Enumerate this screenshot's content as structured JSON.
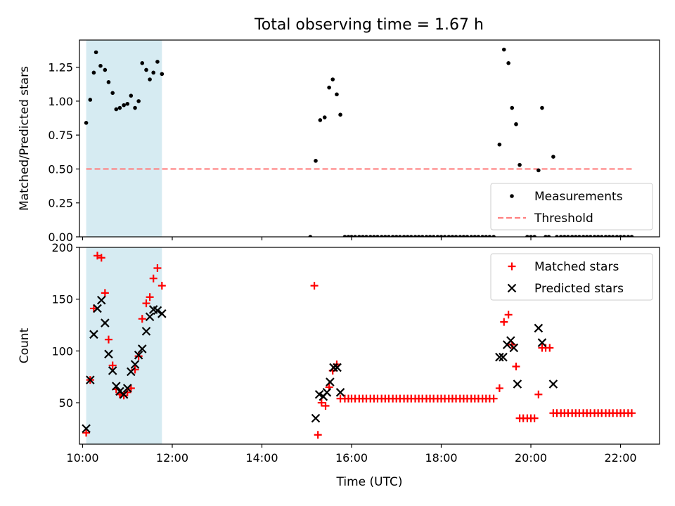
{
  "title": "Total observing time = 1.67 h",
  "chart_data": [
    {
      "type": "scatter",
      "ylabel": "Matched/Predicted stars",
      "xlabel": "",
      "xlim": [
        9.93,
        22.87
      ],
      "ylim": [
        0,
        1.45
      ],
      "yticks": [
        0,
        0.25,
        0.5,
        0.75,
        1.0,
        1.25
      ],
      "ytick_labels": [
        "0.00",
        "0.25",
        "0.50",
        "0.75",
        "1.00",
        "1.25"
      ],
      "shaded_span": [
        10.08,
        11.77
      ],
      "shaded_color": "#add8e6",
      "threshold": 0.5,
      "threshold_color": "#ff7f7f",
      "legend": [
        "Measurements",
        "Threshold"
      ],
      "legend_loc": "lower right",
      "series": [
        {
          "name": "Measurements",
          "color": "#000000",
          "marker": "dot",
          "points": [
            [
              10.08,
              0.84
            ],
            [
              10.17,
              1.01
            ],
            [
              10.25,
              1.21
            ],
            [
              10.3,
              1.36
            ],
            [
              10.4,
              1.26
            ],
            [
              10.5,
              1.23
            ],
            [
              10.58,
              1.14
            ],
            [
              10.67,
              1.06
            ],
            [
              10.75,
              0.94
            ],
            [
              10.83,
              0.95
            ],
            [
              10.92,
              0.97
            ],
            [
              11.0,
              0.98
            ],
            [
              11.08,
              1.04
            ],
            [
              11.17,
              0.95
            ],
            [
              11.25,
              1.0
            ],
            [
              11.33,
              1.28
            ],
            [
              11.42,
              1.23
            ],
            [
              11.5,
              1.16
            ],
            [
              11.58,
              1.21
            ],
            [
              11.67,
              1.29
            ],
            [
              11.77,
              1.2
            ],
            [
              15.08,
              0.0
            ],
            [
              15.2,
              0.56
            ],
            [
              15.3,
              0.86
            ],
            [
              15.4,
              0.88
            ],
            [
              15.5,
              1.1
            ],
            [
              15.58,
              1.16
            ],
            [
              15.67,
              1.05
            ],
            [
              15.75,
              0.9
            ],
            [
              15.85,
              0.0
            ],
            [
              15.93,
              0.0
            ],
            [
              16.0,
              0.0
            ],
            [
              16.08,
              0.0
            ],
            [
              16.17,
              0.0
            ],
            [
              16.25,
              0.0
            ],
            [
              16.33,
              0.0
            ],
            [
              16.42,
              0.0
            ],
            [
              16.5,
              0.0
            ],
            [
              16.58,
              0.0
            ],
            [
              16.67,
              0.0
            ],
            [
              16.75,
              0.0
            ],
            [
              16.83,
              0.0
            ],
            [
              16.92,
              0.0
            ],
            [
              17.0,
              0.0
            ],
            [
              17.08,
              0.0
            ],
            [
              17.17,
              0.0
            ],
            [
              17.25,
              0.0
            ],
            [
              17.33,
              0.0
            ],
            [
              17.42,
              0.0
            ],
            [
              17.5,
              0.0
            ],
            [
              17.58,
              0.0
            ],
            [
              17.67,
              0.0
            ],
            [
              17.75,
              0.0
            ],
            [
              17.83,
              0.0
            ],
            [
              17.92,
              0.0
            ],
            [
              18.0,
              0.0
            ],
            [
              18.08,
              0.0
            ],
            [
              18.17,
              0.0
            ],
            [
              18.25,
              0.0
            ],
            [
              18.33,
              0.0
            ],
            [
              18.42,
              0.0
            ],
            [
              18.5,
              0.0
            ],
            [
              18.58,
              0.0
            ],
            [
              18.67,
              0.0
            ],
            [
              18.75,
              0.0
            ],
            [
              18.83,
              0.0
            ],
            [
              18.92,
              0.0
            ],
            [
              19.0,
              0.0
            ],
            [
              19.08,
              0.0
            ],
            [
              19.17,
              0.0
            ],
            [
              19.3,
              0.68
            ],
            [
              19.4,
              1.38
            ],
            [
              19.5,
              1.28
            ],
            [
              19.58,
              0.95
            ],
            [
              19.67,
              0.83
            ],
            [
              19.75,
              0.53
            ],
            [
              19.92,
              0.0
            ],
            [
              20.0,
              0.0
            ],
            [
              20.08,
              0.0
            ],
            [
              20.17,
              0.49
            ],
            [
              20.25,
              0.95
            ],
            [
              20.4,
              0.0
            ],
            [
              20.5,
              0.59
            ],
            [
              20.33,
              0.0
            ],
            [
              20.58,
              0.0
            ],
            [
              20.67,
              0.0
            ],
            [
              20.75,
              0.0
            ],
            [
              20.83,
              0.0
            ],
            [
              20.92,
              0.0
            ],
            [
              21.0,
              0.0
            ],
            [
              21.08,
              0.0
            ],
            [
              21.17,
              0.0
            ],
            [
              21.25,
              0.0
            ],
            [
              21.33,
              0.0
            ],
            [
              21.42,
              0.0
            ],
            [
              21.5,
              0.0
            ],
            [
              21.58,
              0.0
            ],
            [
              21.67,
              0.0
            ],
            [
              21.75,
              0.0
            ],
            [
              21.83,
              0.0
            ],
            [
              21.92,
              0.0
            ],
            [
              22.0,
              0.0
            ],
            [
              22.08,
              0.0
            ],
            [
              22.17,
              0.0
            ],
            [
              22.25,
              0.0
            ]
          ]
        }
      ]
    },
    {
      "type": "scatter",
      "ylabel": "Count",
      "xlabel": "Time (UTC)",
      "xlim": [
        9.93,
        22.87
      ],
      "ylim": [
        10,
        200
      ],
      "yticks": [
        50,
        100,
        150,
        200
      ],
      "ytick_labels": [
        "50",
        "100",
        "150",
        "200"
      ],
      "xticks": [
        10,
        12,
        14,
        16,
        18,
        20,
        22
      ],
      "xtick_labels": [
        "10:00",
        "12:00",
        "14:00",
        "16:00",
        "18:00",
        "20:00",
        "22:00"
      ],
      "shaded_span": [
        10.08,
        11.77
      ],
      "shaded_color": "#add8e6",
      "legend": [
        "Matched stars",
        "Predicted stars"
      ],
      "legend_loc": "upper right",
      "series": [
        {
          "name": "Matched stars",
          "color": "#ff0000",
          "marker": "plus",
          "points": [
            [
              10.08,
              21
            ],
            [
              10.17,
              72
            ],
            [
              10.25,
              141
            ],
            [
              10.33,
              192
            ],
            [
              10.42,
              190
            ],
            [
              10.5,
              156
            ],
            [
              10.58,
              111
            ],
            [
              10.67,
              86
            ],
            [
              10.75,
              63
            ],
            [
              10.83,
              58
            ],
            [
              10.92,
              57
            ],
            [
              11.0,
              60
            ],
            [
              11.08,
              64
            ],
            [
              11.17,
              82
            ],
            [
              11.25,
              95
            ],
            [
              11.33,
              131
            ],
            [
              11.42,
              146
            ],
            [
              11.5,
              152
            ],
            [
              11.58,
              170
            ],
            [
              11.67,
              180
            ],
            [
              11.77,
              163
            ],
            [
              15.17,
              163
            ],
            [
              15.25,
              19
            ],
            [
              15.33,
              50
            ],
            [
              15.42,
              47
            ],
            [
              15.5,
              65
            ],
            [
              15.58,
              81
            ],
            [
              15.67,
              87
            ],
            [
              15.75,
              54
            ],
            [
              15.85,
              54
            ],
            [
              15.93,
              54
            ],
            [
              16.0,
              54
            ],
            [
              16.08,
              54
            ],
            [
              16.17,
              54
            ],
            [
              16.25,
              54
            ],
            [
              16.33,
              54
            ],
            [
              16.42,
              54
            ],
            [
              16.5,
              54
            ],
            [
              16.58,
              54
            ],
            [
              16.67,
              54
            ],
            [
              16.75,
              54
            ],
            [
              16.83,
              54
            ],
            [
              16.92,
              54
            ],
            [
              17.0,
              54
            ],
            [
              17.08,
              54
            ],
            [
              17.17,
              54
            ],
            [
              17.25,
              54
            ],
            [
              17.33,
              54
            ],
            [
              17.42,
              54
            ],
            [
              17.5,
              54
            ],
            [
              17.58,
              54
            ],
            [
              17.67,
              54
            ],
            [
              17.75,
              54
            ],
            [
              17.83,
              54
            ],
            [
              17.92,
              54
            ],
            [
              18.0,
              54
            ],
            [
              18.08,
              54
            ],
            [
              18.17,
              54
            ],
            [
              18.25,
              54
            ],
            [
              18.33,
              54
            ],
            [
              18.42,
              54
            ],
            [
              18.5,
              54
            ],
            [
              18.58,
              54
            ],
            [
              18.67,
              54
            ],
            [
              18.75,
              54
            ],
            [
              18.83,
              54
            ],
            [
              18.92,
              54
            ],
            [
              19.0,
              54
            ],
            [
              19.08,
              54
            ],
            [
              19.17,
              54
            ],
            [
              19.3,
              64
            ],
            [
              19.4,
              128
            ],
            [
              19.5,
              135
            ],
            [
              19.58,
              106
            ],
            [
              19.67,
              85
            ],
            [
              19.75,
              35
            ],
            [
              19.83,
              35
            ],
            [
              19.92,
              35
            ],
            [
              20.0,
              35
            ],
            [
              20.08,
              35
            ],
            [
              20.17,
              58
            ],
            [
              20.25,
              103
            ],
            [
              20.33,
              103
            ],
            [
              20.42,
              103
            ],
            [
              20.5,
              40
            ],
            [
              20.58,
              40
            ],
            [
              20.67,
              40
            ],
            [
              20.75,
              40
            ],
            [
              20.83,
              40
            ],
            [
              20.92,
              40
            ],
            [
              21.0,
              40
            ],
            [
              21.08,
              40
            ],
            [
              21.17,
              40
            ],
            [
              21.25,
              40
            ],
            [
              21.33,
              40
            ],
            [
              21.42,
              40
            ],
            [
              21.5,
              40
            ],
            [
              21.58,
              40
            ],
            [
              21.67,
              40
            ],
            [
              21.75,
              40
            ],
            [
              21.83,
              40
            ],
            [
              21.92,
              40
            ],
            [
              22.0,
              40
            ],
            [
              22.08,
              40
            ],
            [
              22.17,
              40
            ],
            [
              22.25,
              40
            ]
          ]
        },
        {
          "name": "Predicted stars",
          "color": "#000000",
          "marker": "x",
          "points": [
            [
              10.08,
              25
            ],
            [
              10.17,
              72
            ],
            [
              10.25,
              116
            ],
            [
              10.33,
              141
            ],
            [
              10.42,
              149
            ],
            [
              10.5,
              127
            ],
            [
              10.58,
              97
            ],
            [
              10.67,
              81
            ],
            [
              10.75,
              66
            ],
            [
              10.83,
              61
            ],
            [
              10.92,
              58
            ],
            [
              11.0,
              64
            ],
            [
              11.08,
              80
            ],
            [
              11.17,
              87
            ],
            [
              11.25,
              96
            ],
            [
              11.33,
              102
            ],
            [
              11.42,
              119
            ],
            [
              11.5,
              133
            ],
            [
              11.58,
              140
            ],
            [
              11.67,
              139
            ],
            [
              11.77,
              136
            ],
            [
              15.2,
              35
            ],
            [
              15.28,
              58
            ],
            [
              15.37,
              56
            ],
            [
              15.45,
              60
            ],
            [
              15.52,
              70
            ],
            [
              15.6,
              84
            ],
            [
              15.68,
              84
            ],
            [
              15.75,
              60
            ],
            [
              19.3,
              94
            ],
            [
              19.38,
              94
            ],
            [
              19.47,
              106
            ],
            [
              19.55,
              110
            ],
            [
              19.62,
              103
            ],
            [
              19.7,
              68
            ],
            [
              20.17,
              122
            ],
            [
              20.25,
              108
            ],
            [
              20.5,
              68
            ]
          ]
        }
      ]
    }
  ]
}
